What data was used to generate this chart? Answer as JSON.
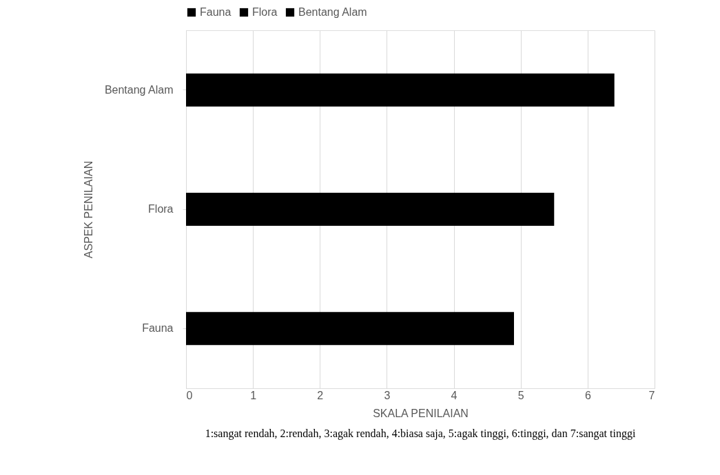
{
  "chart_data": {
    "type": "bar",
    "orientation": "horizontal",
    "categories": [
      "Bentang Alam",
      "Flora",
      "Fauna"
    ],
    "series": [
      {
        "name": "Fauna",
        "color": "#000000",
        "values": [
          null,
          null,
          4.9
        ]
      },
      {
        "name": "Flora",
        "color": "#000000",
        "values": [
          null,
          5.5,
          null
        ]
      },
      {
        "name": "Bentang Alam",
        "color": "#000000",
        "values": [
          6.4,
          null,
          null
        ]
      }
    ],
    "xlim": [
      0,
      7
    ],
    "xticks": [
      0,
      1,
      2,
      3,
      4,
      5,
      6,
      7
    ],
    "xlabel": "SKALA PENILAIAN",
    "ylabel": "ASPEK PENILAIAN",
    "grid": "x",
    "legend": "top",
    "annotations": [
      "1:sangat rendah, 2:rendah, 3:agak rendah, 4:biasa saja, 5:agak tinggi, 6:tinggi, dan 7:sangat tinggi"
    ]
  }
}
